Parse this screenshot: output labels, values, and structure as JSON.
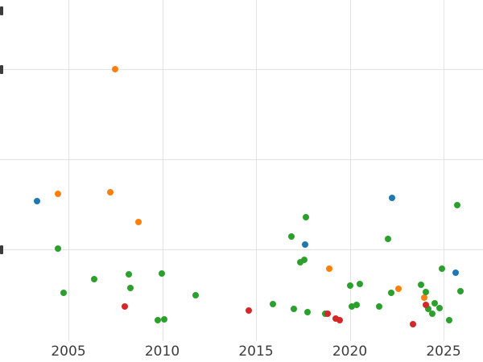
{
  "chart_data": {
    "type": "scatter",
    "title": "",
    "xlabel": "",
    "ylabel": "",
    "grid": true,
    "legend": false,
    "x_ticks": [
      "2005",
      "2010",
      "2015",
      "2020",
      "2025"
    ],
    "x_tick_years": [
      2005,
      2010,
      2015,
      2020,
      2025
    ],
    "x_range": [
      2001.4,
      2027.1
    ],
    "y_gridline_values": [
      1,
      2,
      3
    ],
    "y_range": [
      -0.25,
      3.77
    ],
    "y_axis_note": "y tick labels clipped off left edge; values in gridline units",
    "series": [
      {
        "name": "blue",
        "color": "#1f77b4",
        "points": [
          [
            2003.33,
            1.54
          ],
          [
            2017.6,
            1.05
          ],
          [
            2022.25,
            1.57
          ],
          [
            2025.64,
            0.74
          ]
        ]
      },
      {
        "name": "orange",
        "color": "#ff7f0e",
        "points": [
          [
            2004.44,
            1.62
          ],
          [
            2007.23,
            1.63
          ],
          [
            2007.49,
            3.0
          ],
          [
            2008.73,
            1.3
          ],
          [
            2018.9,
            0.79
          ],
          [
            2022.6,
            0.56
          ],
          [
            2023.97,
            0.46
          ]
        ]
      },
      {
        "name": "green",
        "color": "#2ca02c",
        "points": [
          [
            2004.44,
            1.01
          ],
          [
            2004.74,
            0.52
          ],
          [
            2006.37,
            0.67
          ],
          [
            2008.22,
            0.72
          ],
          [
            2008.3,
            0.57
          ],
          [
            2009.76,
            0.21
          ],
          [
            2009.97,
            0.73
          ],
          [
            2010.09,
            0.22
          ],
          [
            2011.78,
            0.49
          ],
          [
            2015.9,
            0.39
          ],
          [
            2016.89,
            1.14
          ],
          [
            2017.02,
            0.34
          ],
          [
            2017.36,
            0.86
          ],
          [
            2017.58,
            0.88
          ],
          [
            2017.66,
            1.36
          ],
          [
            2017.75,
            0.3
          ],
          [
            2018.7,
            0.29
          ],
          [
            2020.0,
            0.6
          ],
          [
            2020.09,
            0.37
          ],
          [
            2020.35,
            0.38
          ],
          [
            2020.52,
            0.62
          ],
          [
            2021.55,
            0.37
          ],
          [
            2022.06,
            1.12
          ],
          [
            2022.19,
            0.52
          ],
          [
            2023.78,
            0.61
          ],
          [
            2024.04,
            0.53
          ],
          [
            2024.17,
            0.34
          ],
          [
            2024.38,
            0.29
          ],
          [
            2024.51,
            0.4
          ],
          [
            2024.77,
            0.35
          ],
          [
            2024.9,
            0.79
          ],
          [
            2025.29,
            0.21
          ],
          [
            2025.72,
            1.49
          ],
          [
            2025.9,
            0.54
          ]
        ]
      },
      {
        "name": "red",
        "color": "#d62728",
        "points": [
          [
            2008.0,
            0.37
          ],
          [
            2014.6,
            0.32
          ],
          [
            2018.8,
            0.29
          ],
          [
            2019.25,
            0.23
          ],
          [
            2019.46,
            0.21
          ],
          [
            2023.37,
            0.17
          ],
          [
            2024.06,
            0.38
          ]
        ]
      }
    ]
  }
}
